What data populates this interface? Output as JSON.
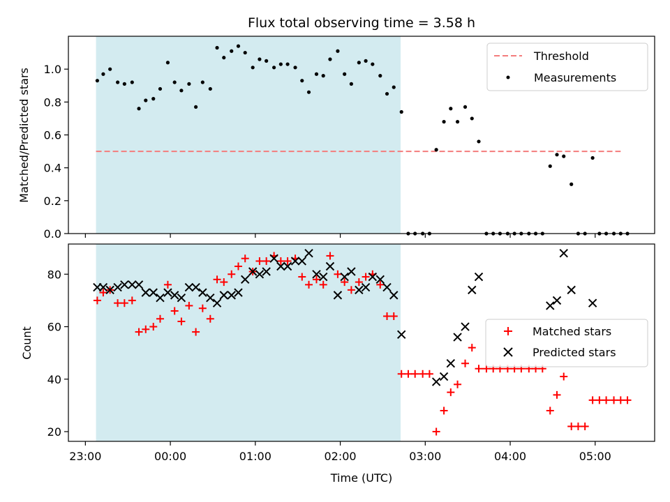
{
  "chart_data": [
    {
      "type": "scatter",
      "title": "Flux total observing time = 3.58 h",
      "ylabel": "Matched/Predicted stars",
      "xlabel": "",
      "x_unit": "hours since 23:00 UTC on the time axis",
      "xlim": [
        -0.2,
        6.7
      ],
      "ylim": [
        0,
        1.2
      ],
      "yticks": [
        0.0,
        0.2,
        0.4,
        0.6,
        0.8,
        1.0
      ],
      "ytick_labels": [
        "0.0",
        "0.2",
        "0.4",
        "0.6",
        "0.8",
        "1.0"
      ],
      "shaded_interval": [
        0.125,
        3.71
      ],
      "shade_color": "#d3ebf0",
      "legend_position": "top-right",
      "threshold": {
        "name": "Threshold",
        "value": 0.5,
        "x_range": [
          0.125,
          6.3
        ],
        "color": "#f47c7c",
        "style": "dashed"
      },
      "series": [
        {
          "name": "Measurements",
          "marker": "dot",
          "color": "#000000",
          "points": [
            [
              0.14,
              0.93
            ],
            [
              0.21,
              0.97
            ],
            [
              0.29,
              1.0
            ],
            [
              0.38,
              0.92
            ],
            [
              0.46,
              0.91
            ],
            [
              0.55,
              0.92
            ],
            [
              0.63,
              0.76
            ],
            [
              0.71,
              0.81
            ],
            [
              0.8,
              0.82
            ],
            [
              0.88,
              0.88
            ],
            [
              0.97,
              1.04
            ],
            [
              1.05,
              0.92
            ],
            [
              1.13,
              0.87
            ],
            [
              1.22,
              0.91
            ],
            [
              1.3,
              0.77
            ],
            [
              1.38,
              0.92
            ],
            [
              1.47,
              0.88
            ],
            [
              1.55,
              1.13
            ],
            [
              1.63,
              1.07
            ],
            [
              1.72,
              1.11
            ],
            [
              1.8,
              1.14
            ],
            [
              1.88,
              1.1
            ],
            [
              1.97,
              1.01
            ],
            [
              2.05,
              1.06
            ],
            [
              2.13,
              1.05
            ],
            [
              2.22,
              1.01
            ],
            [
              2.3,
              1.03
            ],
            [
              2.38,
              1.03
            ],
            [
              2.47,
              1.01
            ],
            [
              2.55,
              0.93
            ],
            [
              2.63,
              0.86
            ],
            [
              2.72,
              0.97
            ],
            [
              2.8,
              0.96
            ],
            [
              2.88,
              1.06
            ],
            [
              2.97,
              1.11
            ],
            [
              3.05,
              0.97
            ],
            [
              3.13,
              0.91
            ],
            [
              3.22,
              1.04
            ],
            [
              3.3,
              1.05
            ],
            [
              3.38,
              1.03
            ],
            [
              3.47,
              0.96
            ],
            [
              3.55,
              0.85
            ],
            [
              3.63,
              0.89
            ],
            [
              3.72,
              0.74
            ],
            [
              3.8,
              0.0
            ],
            [
              3.88,
              0.0
            ],
            [
              3.97,
              0.0
            ],
            [
              4.05,
              0.0
            ],
            [
              4.13,
              0.51
            ],
            [
              4.22,
              0.68
            ],
            [
              4.3,
              0.76
            ],
            [
              4.38,
              0.68
            ],
            [
              4.47,
              0.77
            ],
            [
              4.55,
              0.7
            ],
            [
              4.63,
              0.56
            ],
            [
              4.72,
              0.0
            ],
            [
              4.8,
              0.0
            ],
            [
              4.88,
              0.0
            ],
            [
              4.97,
              0.0
            ],
            [
              5.05,
              0.0
            ],
            [
              5.13,
              0.0
            ],
            [
              5.22,
              0.0
            ],
            [
              5.3,
              0.0
            ],
            [
              5.38,
              0.0
            ],
            [
              5.47,
              0.41
            ],
            [
              5.55,
              0.48
            ],
            [
              5.63,
              0.47
            ],
            [
              5.72,
              0.3
            ],
            [
              5.8,
              0.0
            ],
            [
              5.88,
              0.0
            ],
            [
              5.97,
              0.46
            ],
            [
              6.05,
              0.0
            ],
            [
              6.13,
              0.0
            ],
            [
              6.22,
              0.0
            ],
            [
              6.3,
              0.0
            ],
            [
              6.38,
              0.0
            ]
          ]
        }
      ]
    },
    {
      "type": "scatter",
      "title": "",
      "ylabel": "Count",
      "xlabel": "Time (UTC)",
      "x_unit": "hours since 23:00 UTC on the time axis",
      "xlim": [
        -0.2,
        6.7
      ],
      "ylim": [
        16.3,
        91.5
      ],
      "yticks": [
        20,
        40,
        60,
        80
      ],
      "ytick_labels": [
        "20",
        "40",
        "60",
        "80"
      ],
      "xticks": [
        0,
        1,
        2,
        3,
        4,
        5,
        6
      ],
      "xtick_labels": [
        "23:00",
        "00:00",
        "01:00",
        "02:00",
        "03:00",
        "04:00",
        "05:00"
      ],
      "shaded_interval": [
        0.125,
        3.71
      ],
      "shade_color": "#d3ebf0",
      "legend_position": "center-right",
      "series": [
        {
          "name": "Matched stars",
          "marker": "plus",
          "color": "#ff0000",
          "points": [
            [
              0.14,
              70
            ],
            [
              0.21,
              73
            ],
            [
              0.29,
              74
            ],
            [
              0.38,
              69
            ],
            [
              0.46,
              69
            ],
            [
              0.55,
              70
            ],
            [
              0.63,
              58
            ],
            [
              0.71,
              59
            ],
            [
              0.8,
              60
            ],
            [
              0.88,
              63
            ],
            [
              0.97,
              76
            ],
            [
              1.05,
              66
            ],
            [
              1.13,
              62
            ],
            [
              1.22,
              68
            ],
            [
              1.3,
              58
            ],
            [
              1.38,
              67
            ],
            [
              1.47,
              63
            ],
            [
              1.55,
              78
            ],
            [
              1.63,
              77
            ],
            [
              1.72,
              80
            ],
            [
              1.8,
              83
            ],
            [
              1.88,
              86
            ],
            [
              1.97,
              81
            ],
            [
              2.05,
              85
            ],
            [
              2.13,
              85
            ],
            [
              2.22,
              87
            ],
            [
              2.3,
              85
            ],
            [
              2.38,
              85
            ],
            [
              2.47,
              86
            ],
            [
              2.55,
              79
            ],
            [
              2.63,
              76
            ],
            [
              2.72,
              78
            ],
            [
              2.8,
              76
            ],
            [
              2.88,
              87
            ],
            [
              2.97,
              80
            ],
            [
              3.05,
              77
            ],
            [
              3.13,
              74
            ],
            [
              3.22,
              77
            ],
            [
              3.3,
              79
            ],
            [
              3.38,
              80
            ],
            [
              3.47,
              76
            ],
            [
              3.55,
              64
            ],
            [
              3.63,
              64
            ],
            [
              3.72,
              42
            ],
            [
              3.8,
              42
            ],
            [
              3.88,
              42
            ],
            [
              3.97,
              42
            ],
            [
              4.05,
              42
            ],
            [
              4.13,
              20
            ],
            [
              4.22,
              28
            ],
            [
              4.3,
              35
            ],
            [
              4.38,
              38
            ],
            [
              4.47,
              46
            ],
            [
              4.55,
              52
            ],
            [
              4.63,
              44
            ],
            [
              4.72,
              44
            ],
            [
              4.8,
              44
            ],
            [
              4.88,
              44
            ],
            [
              4.97,
              44
            ],
            [
              5.05,
              44
            ],
            [
              5.13,
              44
            ],
            [
              5.22,
              44
            ],
            [
              5.3,
              44
            ],
            [
              5.38,
              44
            ],
            [
              5.47,
              28
            ],
            [
              5.55,
              34
            ],
            [
              5.63,
              41
            ],
            [
              5.72,
              22
            ],
            [
              5.8,
              22
            ],
            [
              5.88,
              22
            ],
            [
              5.97,
              32
            ],
            [
              6.05,
              32
            ],
            [
              6.13,
              32
            ],
            [
              6.22,
              32
            ],
            [
              6.3,
              32
            ],
            [
              6.38,
              32
            ]
          ]
        },
        {
          "name": "Predicted stars",
          "marker": "x",
          "color": "#000000",
          "points": [
            [
              0.14,
              75
            ],
            [
              0.21,
              75
            ],
            [
              0.29,
              74
            ],
            [
              0.38,
              75
            ],
            [
              0.46,
              76
            ],
            [
              0.55,
              76
            ],
            [
              0.63,
              76
            ],
            [
              0.71,
              73
            ],
            [
              0.8,
              73
            ],
            [
              0.88,
              71
            ],
            [
              0.97,
              73
            ],
            [
              1.05,
              72
            ],
            [
              1.13,
              71
            ],
            [
              1.22,
              75
            ],
            [
              1.3,
              75
            ],
            [
              1.38,
              73
            ],
            [
              1.47,
              71
            ],
            [
              1.55,
              69
            ],
            [
              1.63,
              72
            ],
            [
              1.72,
              72
            ],
            [
              1.8,
              73
            ],
            [
              1.88,
              78
            ],
            [
              1.97,
              81
            ],
            [
              2.05,
              80
            ],
            [
              2.13,
              81
            ],
            [
              2.22,
              86
            ],
            [
              2.3,
              83
            ],
            [
              2.38,
              83
            ],
            [
              2.47,
              85
            ],
            [
              2.55,
              85
            ],
            [
              2.63,
              88
            ],
            [
              2.72,
              80
            ],
            [
              2.8,
              79
            ],
            [
              2.88,
              83
            ],
            [
              2.97,
              72
            ],
            [
              3.05,
              79
            ],
            [
              3.13,
              81
            ],
            [
              3.22,
              74
            ],
            [
              3.3,
              75
            ],
            [
              3.38,
              79
            ],
            [
              3.47,
              78
            ],
            [
              3.55,
              75
            ],
            [
              3.63,
              72
            ],
            [
              3.72,
              57
            ],
            [
              4.13,
              39
            ],
            [
              4.22,
              41
            ],
            [
              4.3,
              46
            ],
            [
              4.38,
              56
            ],
            [
              4.47,
              60
            ],
            [
              4.55,
              74
            ],
            [
              4.63,
              79
            ],
            [
              5.47,
              68
            ],
            [
              5.55,
              70
            ],
            [
              5.63,
              88
            ],
            [
              5.72,
              74
            ],
            [
              5.97,
              69
            ]
          ]
        }
      ]
    }
  ]
}
